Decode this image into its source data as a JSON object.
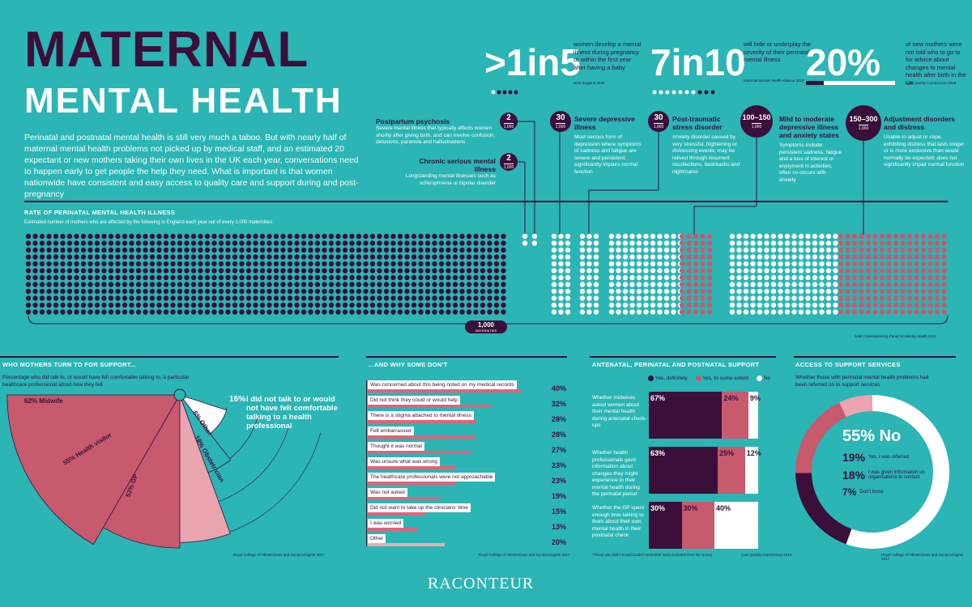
{
  "header": {
    "title_line1": "MATERNAL",
    "title_line2": "MENTAL HEALTH",
    "intro": "Perinatal and postnatal mental health is still very much a taboo. But with nearly half of maternal mental health problems not picked up by medical staff, and an estimated 20 expectant or new mothers taking their own lives in the UK each year, conversations need to happen early to get people the help they need. What is important is that women nationwide have consistent and easy access to quality care and support during and post-pregnancy"
  },
  "stats": [
    {
      "big": ">1in5",
      "text": "women develop a mental illness during pregnancy or within the first year after having a baby",
      "source": "NHS England 2020"
    },
    {
      "big": "7in10",
      "text": "will hide or underplay the severity of their perinatal mental illness",
      "source": "Maternal Mental Health Alliance 2020"
    },
    {
      "big": "20%",
      "text": "of new mothers were not told who to go to for advice about changes to mental health after birth in the UK",
      "source": "Care Quality Commission 2019"
    }
  ],
  "conditions": [
    {
      "rate": "2",
      "per": "1,000",
      "name": "Postpartum psychosis",
      "desc": "Severe mental illness that typically affects women shortly after giving birth, and can involve confusion, delusions, paranoia and hallucinations"
    },
    {
      "rate": "2",
      "per": "1,000",
      "name": "Chronic serious mental illness",
      "desc": "Longstanding mental illnesses such as schizophrenia or bipolar disorder"
    },
    {
      "rate": "30",
      "per": "1,000",
      "name": "Severe depressive illness",
      "desc": "Most serious form of depression where symptoms of sadness and fatigue are severe and persistent; significantly impairs normal function"
    },
    {
      "rate": "30",
      "per": "1,000",
      "name": "Post-traumatic stress disorder",
      "desc": "Anxiety disorder caused by very stressful, frightening or distressing events; may be relived through recurrent recollections, flashbacks and nightmares"
    },
    {
      "rate": "100–150",
      "per": "1,000",
      "name": "Mild to moderate depressive illness and anxiety states",
      "desc": "Symptoms include persistent sadness, fatigue and a loss of interest or enjoyment in activities; often co-occurs with anxiety"
    },
    {
      "rate": "150–300",
      "per": "1,000",
      "name": "Adjustment disorders and distress",
      "desc": "Unable to adjust or cope, exhibiting distress that lasts longer or is more excessive than would normally be expected; does not significantly impair normal function"
    }
  ],
  "rate_section": {
    "heading": "RATE OF PERINATAL MENTAL HEALTH ILLNESS",
    "sub": "Estimated number of mothers who are affected by the following in England each year out of every 1,000 maternities",
    "total_label": "1,000",
    "total_sub": "MATERNITIES",
    "source": "Joint Commissioning Panel for Mental Health 2012"
  },
  "support_section": {
    "heading": "WHO MOTHERS TURN TO FOR SUPPORT...",
    "sub": "Percentage who did talk to, or would have felt comfortable talking to, a particular healthcare professional about how they felt",
    "source": "Royal College of Obstetricians and Gynaecologists 2017",
    "none_pct": "16%",
    "none_text": "I did not talk to or would not have felt comfortable talking to a health professional"
  },
  "chart_data": [
    {
      "type": "bar",
      "title": "WHO MOTHERS TURN TO FOR SUPPORT...",
      "categories": [
        "Midwife",
        "Health visitor",
        "GP",
        "Obstetrician",
        "Other"
      ],
      "values": [
        62,
        55,
        53,
        18,
        6
      ],
      "labels": [
        "62% Midwife",
        "55% Health visitor",
        "53% GP",
        "18% Obstetrician",
        "6% Other"
      ]
    },
    {
      "type": "bar",
      "title": "...AND WHY SOME DON'T",
      "categories": [
        "Was concerned about this being noted on my medical records",
        "Did not think they could or would help",
        "There is a stigma attached to mental illness",
        "Felt embarrassed",
        "Thought it was normal",
        "Was unsure what was wrong",
        "The healthcare professionals were not approachable",
        "Was not asked",
        "Did not want to take up the clinicians' time",
        "I was worried",
        "Other"
      ],
      "values": [
        40,
        32,
        28,
        28,
        27,
        23,
        23,
        19,
        15,
        13,
        20
      ],
      "labels": [
        "40%",
        "32%",
        "28%",
        "28%",
        "27%",
        "23%",
        "23%",
        "19%",
        "15%",
        "13%",
        "20%"
      ],
      "source": "Royal College of Obstetricians and Gynaecologists 2017"
    },
    {
      "type": "bar",
      "title": "ANTENATAL, PERINATAL AND POSTNATAL SUPPORT",
      "legend": [
        "Yes, definitely",
        "Yes, to some extent",
        "No"
      ],
      "categories": [
        "Whether midwives asked women about their mental health during antenatal check-ups",
        "Whether health professionals gave information about changes they might experience to their mental health during the perinatal period",
        "Whether the GP spent enough time talking to them about their own mental health in their postnatal check"
      ],
      "series": [
        {
          "name": "Yes, definitely",
          "values": [
            67,
            63,
            30
          ],
          "labels": [
            "67%",
            "63%",
            "30%"
          ]
        },
        {
          "name": "Yes, to some extent",
          "values": [
            24,
            25,
            30
          ],
          "labels": [
            "24%",
            "25%",
            "30%"
          ]
        },
        {
          "name": "No",
          "values": [
            9,
            12,
            40
          ],
          "labels": [
            "9%",
            "12%",
            "40%"
          ]
        }
      ],
      "note": "*Those who didn't know/couldn't remember were excluded from the survey",
      "source": "Care Quality Commission 2019"
    },
    {
      "type": "pie",
      "title": "ACCESS TO SUPPORT SERVICES",
      "subtitle": "Whether those with perinatal mental health problems had been referred on to support services",
      "categories": [
        "No",
        "Yes, I was referred",
        "I was given information on organisations to contact",
        "Don't know"
      ],
      "values": [
        55,
        19,
        18,
        7
      ],
      "labels": [
        "55%",
        "19%",
        "18%",
        "7%"
      ],
      "source": "Royal College of Obstetricians and Gynaecologists 2017"
    }
  ],
  "colors": {
    "teal": "#2BB5B5",
    "plum": "#3A0F3A",
    "rose": "#C85A6E",
    "pink": "#E0637A",
    "lightpink": "#F0A9B4",
    "white": "#FFFFFF"
  },
  "footer": {
    "brand": "RACONTEUR"
  }
}
